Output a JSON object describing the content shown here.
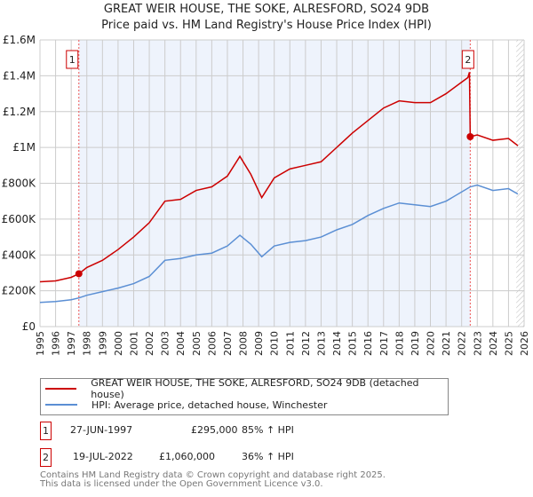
{
  "chart_data": {
    "type": "line",
    "title": "GREAT WEIR HOUSE, THE SOKE, ALRESFORD, SO24 9DB",
    "subtitle": "Price paid vs. HM Land Registry's House Price Index (HPI)",
    "xlim": [
      1995,
      2026
    ],
    "ylim": [
      0,
      1600000
    ],
    "x_ticks": [
      "1995",
      "1996",
      "1997",
      "1998",
      "1999",
      "2000",
      "2001",
      "2002",
      "2003",
      "2004",
      "2005",
      "2006",
      "2007",
      "2008",
      "2009",
      "2010",
      "2011",
      "2012",
      "2013",
      "2014",
      "2015",
      "2016",
      "2017",
      "2018",
      "2019",
      "2020",
      "2021",
      "2022",
      "2023",
      "2024",
      "2025",
      "2026"
    ],
    "y_ticks": [
      {
        "v": 0,
        "l": "£0"
      },
      {
        "v": 200000,
        "l": "£200K"
      },
      {
        "v": 400000,
        "l": "£400K"
      },
      {
        "v": 600000,
        "l": "£600K"
      },
      {
        "v": 800000,
        "l": "£800K"
      },
      {
        "v": 1000000,
        "l": "£1M"
      },
      {
        "v": 1200000,
        "l": "£1.2M"
      },
      {
        "v": 1400000,
        "l": "£1.4M"
      },
      {
        "v": 1600000,
        "l": "£1.6M"
      }
    ],
    "series": [
      {
        "name": "GREAT WEIR HOUSE, THE SOKE, ALRESFORD, SO24 9DB (detached house)",
        "color": "#cc0000",
        "x": [
          1995,
          1996,
          1997,
          1997.49,
          1998,
          1999,
          2000,
          2001,
          2002,
          2003,
          2004,
          2005,
          2006,
          2007,
          2007.8,
          2008.5,
          2009.2,
          2010,
          2011,
          2012,
          2013,
          2014,
          2015,
          2016,
          2017,
          2018,
          2019,
          2020,
          2021,
          2022.4,
          2022.5,
          2022.55,
          2023,
          2024,
          2025,
          2025.6
        ],
        "y": [
          250000,
          255000,
          275000,
          295000,
          330000,
          370000,
          430000,
          500000,
          580000,
          700000,
          710000,
          760000,
          780000,
          840000,
          950000,
          850000,
          720000,
          830000,
          880000,
          900000,
          920000,
          1000000,
          1080000,
          1150000,
          1220000,
          1260000,
          1250000,
          1250000,
          1300000,
          1390000,
          1420000,
          1060000,
          1070000,
          1040000,
          1050000,
          1010000
        ]
      },
      {
        "name": "HPI: Average price, detached house, Winchester",
        "color": "#5b8fd4",
        "x": [
          1995,
          1996,
          1997,
          1997.49,
          1998,
          1999,
          2000,
          2001,
          2002,
          2003,
          2004,
          2005,
          2006,
          2007,
          2007.8,
          2008.5,
          2009.2,
          2010,
          2011,
          2012,
          2013,
          2014,
          2015,
          2016,
          2017,
          2018,
          2019,
          2020,
          2021,
          2022.55,
          2023,
          2024,
          2025,
          2025.6
        ],
        "y": [
          135000,
          140000,
          150000,
          160000,
          175000,
          195000,
          215000,
          240000,
          280000,
          370000,
          380000,
          400000,
          410000,
          450000,
          510000,
          460000,
          390000,
          450000,
          470000,
          480000,
          500000,
          540000,
          570000,
          620000,
          660000,
          690000,
          680000,
          670000,
          700000,
          780000,
          790000,
          760000,
          770000,
          740000
        ]
      }
    ],
    "sales": [
      {
        "id": "1",
        "x": 1997.49,
        "y": 295000,
        "date": "27-JUN-1997",
        "price": "£295,000",
        "hpi": "85% ↑ HPI"
      },
      {
        "id": "2",
        "x": 2022.55,
        "y": 1060000,
        "date": "19-JUL-2022",
        "price": "£1,060,000",
        "hpi": "36% ↑ HPI"
      }
    ]
  },
  "footer": [
    "Contains HM Land Registry data © Crown copyright and database right 2025.",
    "This data is licensed under the Open Government Licence v3.0."
  ]
}
